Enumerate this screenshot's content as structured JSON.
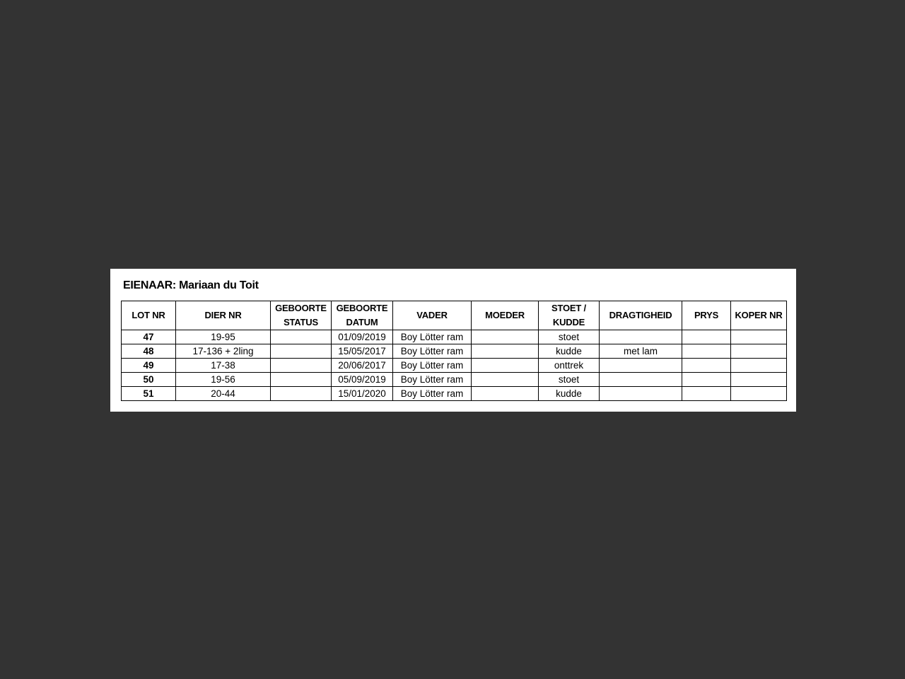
{
  "title": "EIENAAR: Mariaan du Toit",
  "table": {
    "headers": [
      "LOT NR",
      "DIER NR",
      "GEBOORTE\nSTATUS",
      "GEBOORTE\nDATUM",
      "VADER",
      "MOEDER",
      "STOET /\nKUDDE",
      "DRAGTIGHEID",
      "PRYS",
      "KOPER NR"
    ],
    "rows": [
      [
        "47",
        "19-95",
        "",
        "01/09/2019",
        "Boy Lötter ram",
        "",
        "stoet",
        "",
        "",
        ""
      ],
      [
        "48",
        "17-136 + 2ling",
        "",
        "15/05/2017",
        "Boy Lötter ram",
        "",
        "kudde",
        "met lam",
        "",
        ""
      ],
      [
        "49",
        "17-38",
        "",
        "20/06/2017",
        "Boy Lötter ram",
        "",
        "onttrek",
        "",
        "",
        ""
      ],
      [
        "50",
        "19-56",
        "",
        "05/09/2019",
        "Boy Lötter ram",
        "",
        "stoet",
        "",
        "",
        ""
      ],
      [
        "51",
        "20-44",
        "",
        "15/01/2020",
        "Boy Lötter ram",
        "",
        "kudde",
        "",
        "",
        ""
      ]
    ]
  }
}
